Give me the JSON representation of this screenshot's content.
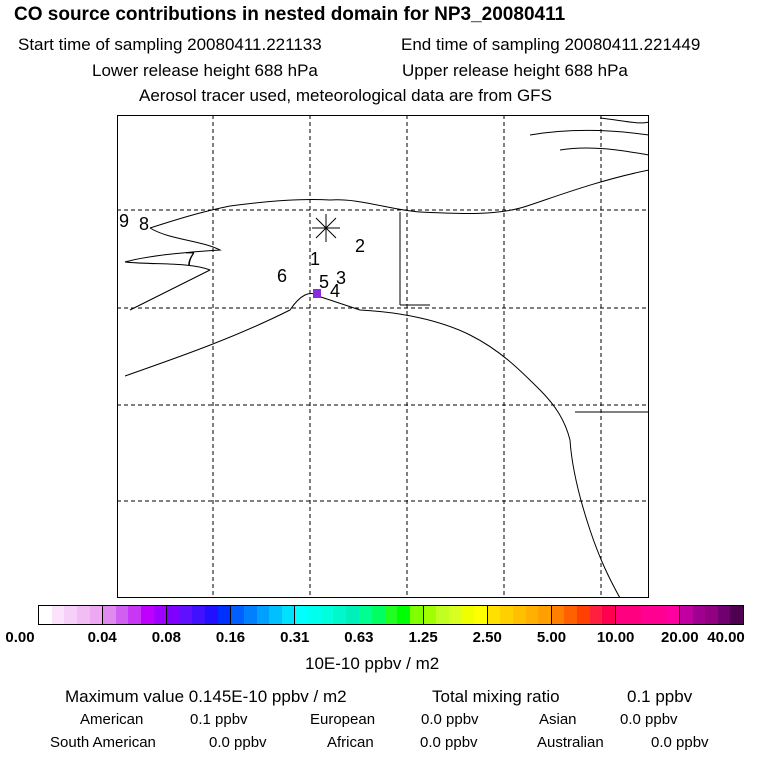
{
  "title": "CO  source contributions in nested domain for NP3_20080411",
  "start": "Start time of sampling 20080411.221133",
  "end": "End time of sampling 20080411.221449",
  "lower": "Lower release height  688 hPa",
  "upper": "Upper release height  688 hPa",
  "tracer": "Aerosol tracer used, meteorological data are from GFS",
  "map": {
    "labels": [
      "1",
      "2",
      "3",
      "4",
      "5",
      "6",
      "7",
      "8",
      "9"
    ],
    "release_marker": "asterisk-icon",
    "max_cell_color": "#8a2be2"
  },
  "colorbar": {
    "ticks": [
      "0.00",
      "0.04",
      "0.08",
      "0.16",
      "0.31",
      "0.63",
      "1.25",
      "2.50",
      "5.00",
      "10.00",
      "20.00",
      "40.00"
    ],
    "unit": "10E-10 ppbv / m2",
    "segments": [
      [
        "#ffffff",
        "#fbe4fb",
        "#f6d0f8",
        "#f2bcf5",
        "#eea8f2"
      ],
      [
        "#e08af0",
        "#d060f0",
        "#c838f4",
        "#c000ff",
        "#a000ff"
      ],
      [
        "#8000ff",
        "#6010ff",
        "#4010ff",
        "#2010ff",
        "#0030ff"
      ],
      [
        "#0060ff",
        "#0080ff",
        "#00a0ff",
        "#00c0ff",
        "#00e0ff"
      ],
      [
        "#00ffff",
        "#00ffee",
        "#00ffdd",
        "#00f8cc",
        "#00f0bb"
      ],
      [
        "#00ff90",
        "#00ff60",
        "#20ff20",
        "#00ff00",
        "#80ff00"
      ],
      [
        "#a0ff00",
        "#c0ff20",
        "#d8ff20",
        "#f0ff00",
        "#ffff00"
      ],
      [
        "#ffe000",
        "#ffd000",
        "#ffc000",
        "#ffb000",
        "#ffa000"
      ],
      [
        "#ff8000",
        "#ff6000",
        "#ff4000",
        "#ff2040",
        "#ff0050"
      ],
      [
        "#ff0080",
        "#ff0080",
        "#ff0090",
        "#ff0090",
        "#ff00a0"
      ],
      [
        "#c000a0",
        "#a00090",
        "#900080",
        "#700070",
        "#500050"
      ]
    ]
  },
  "summary": {
    "max": "Maximum value  0.145E-10 ppbv / m2",
    "total_label": "Total mixing ratio",
    "total": "0.1 ppbv",
    "rows": [
      [
        {
          "name": "American",
          "value": "0.1 ppbv"
        },
        {
          "name": "European",
          "value": "0.0 ppbv"
        },
        {
          "name": "Asian",
          "value": "0.0 ppbv"
        }
      ],
      [
        {
          "name": "South American",
          "value": "0.0 ppbv"
        },
        {
          "name": "African",
          "value": "0.0 ppbv"
        },
        {
          "name": "Australian",
          "value": "0.0 ppbv"
        }
      ]
    ]
  }
}
